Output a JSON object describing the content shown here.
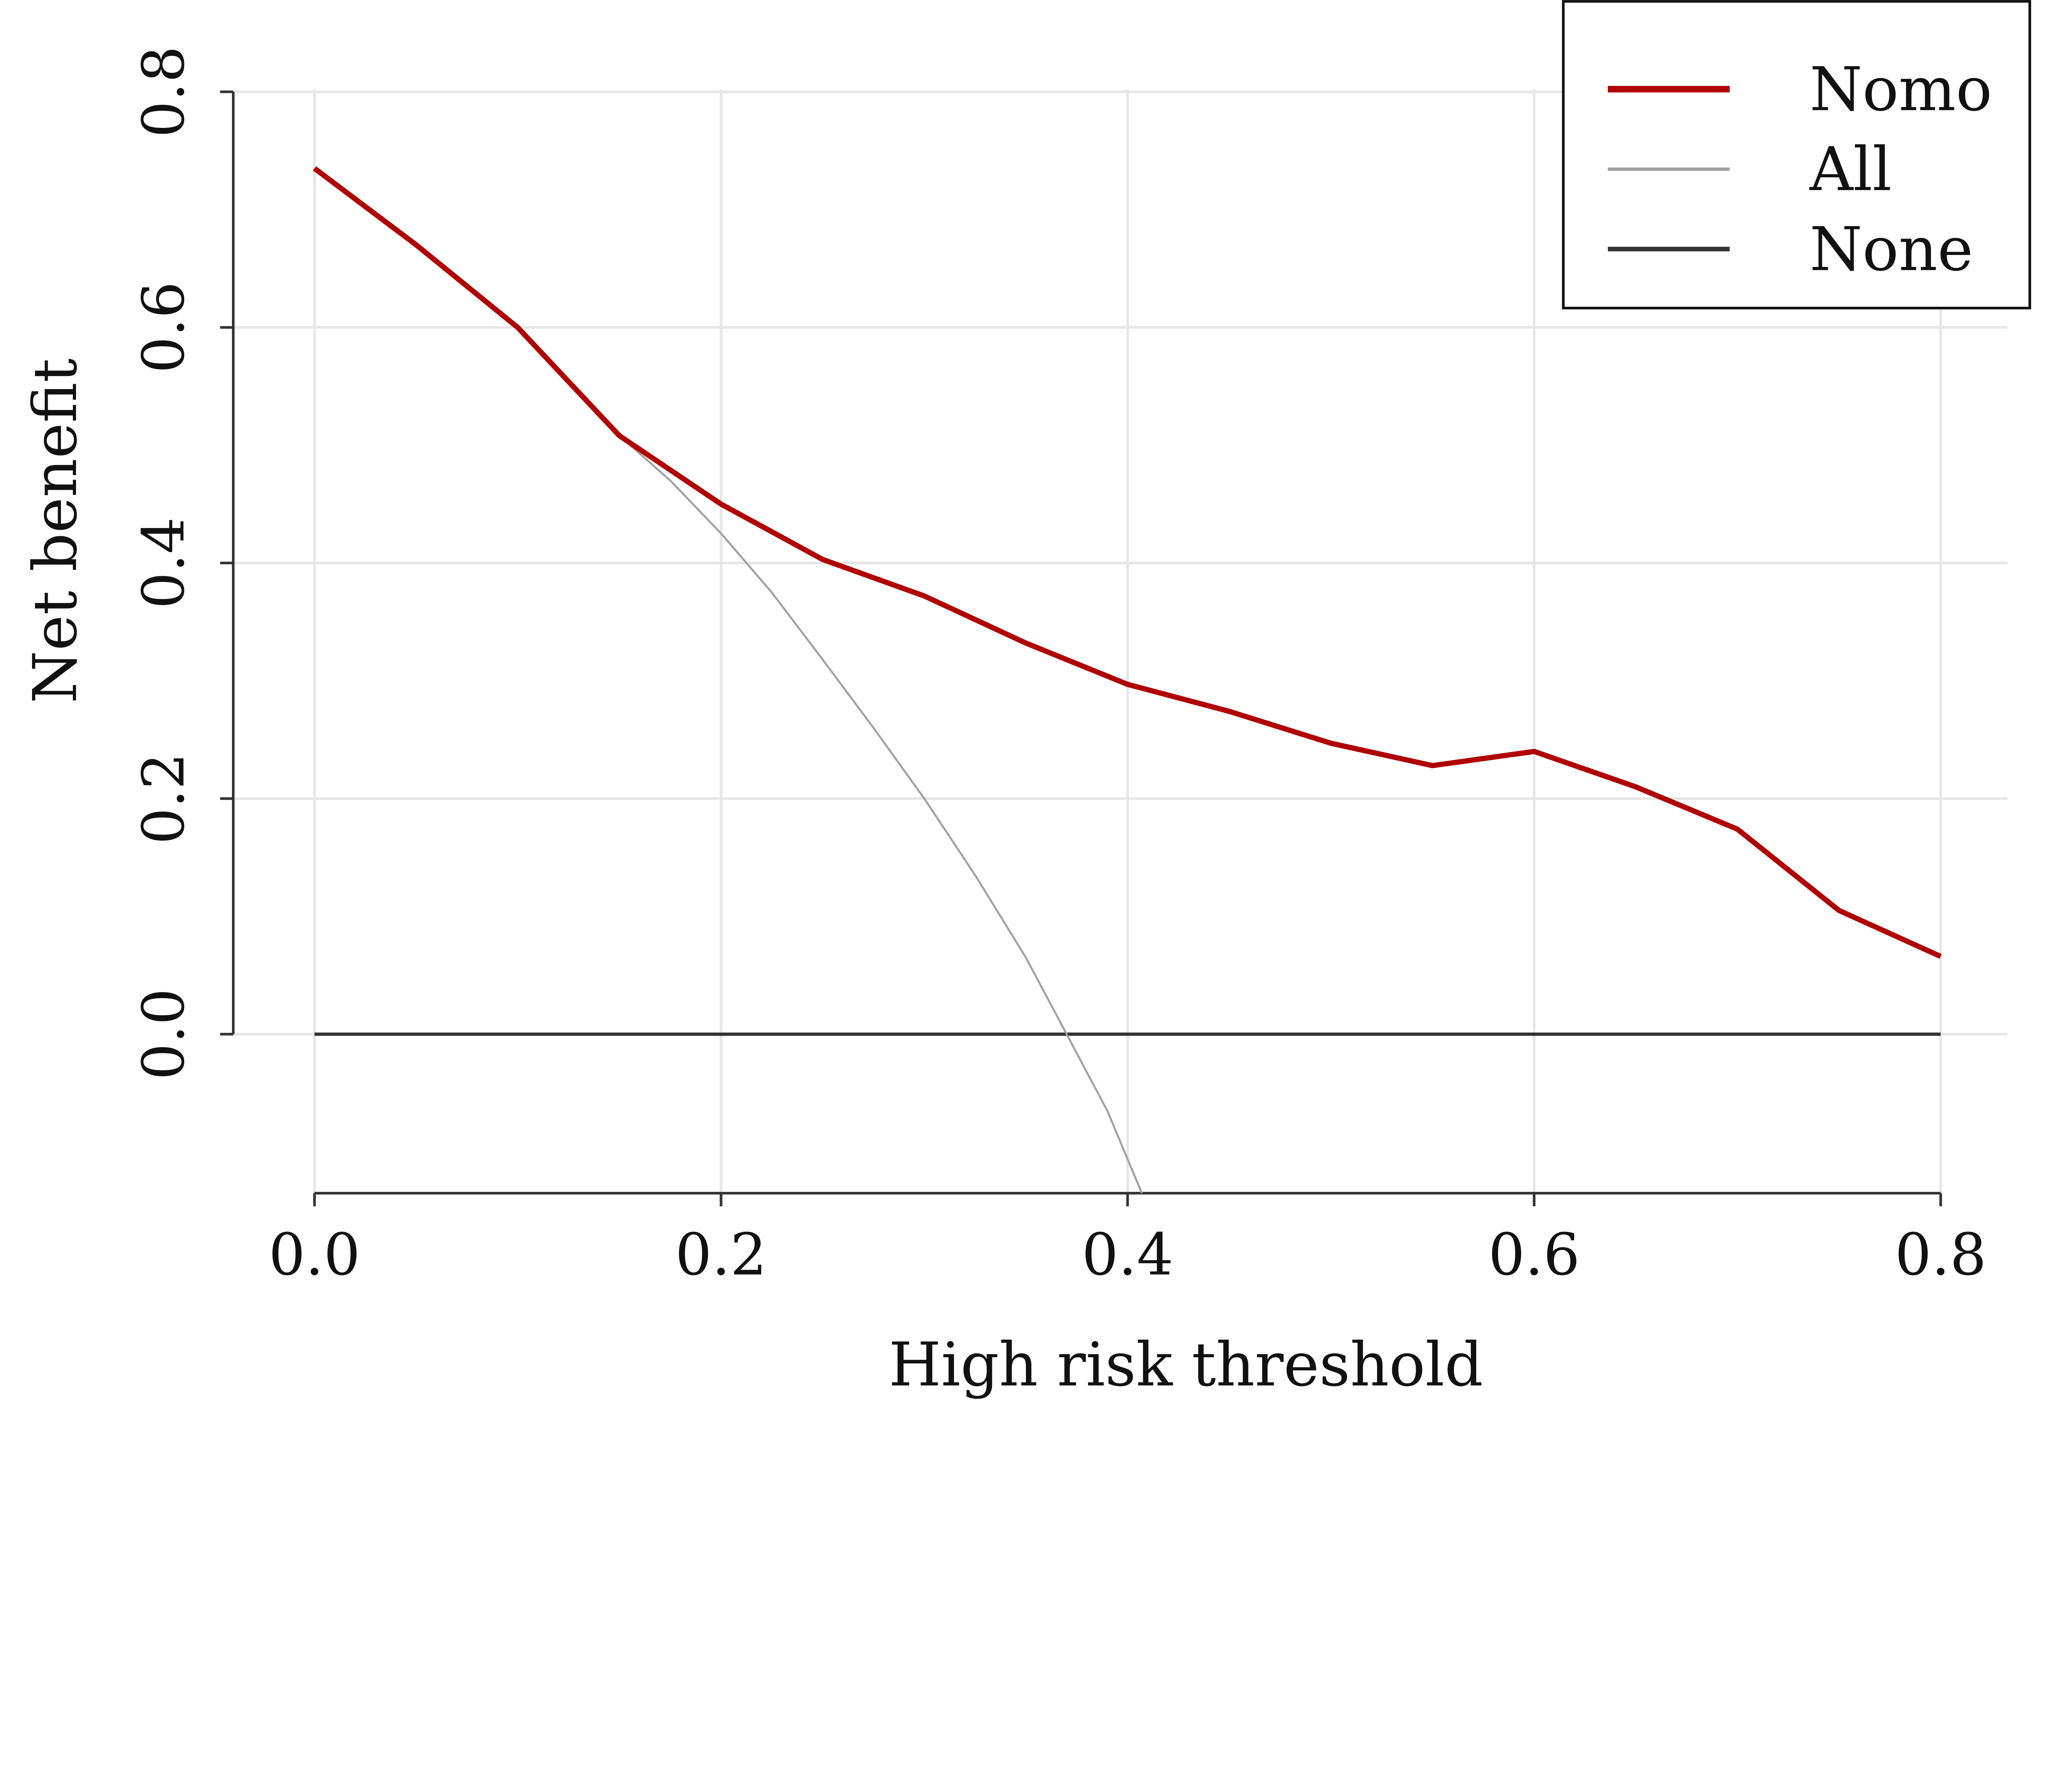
{
  "chart_data": {
    "type": "line",
    "title": "",
    "xlabel": "High risk threshold",
    "ylabel": "Net benefit",
    "xlim": [
      0,
      0.8
    ],
    "ylim": [
      -0.135,
      0.8
    ],
    "xticks": [
      "0.0",
      "0.2",
      "0.4",
      "0.6",
      "0.8"
    ],
    "yticks": [
      "0.0",
      "0.2",
      "0.4",
      "0.6",
      "0.8"
    ],
    "grid": true,
    "legend_position": "top-right",
    "series": [
      {
        "name": "Nomo",
        "color": "#b00000",
        "x": [
          0,
          0.05,
          0.1,
          0.15,
          0.2,
          0.25,
          0.3,
          0.35,
          0.4,
          0.45,
          0.5,
          0.55,
          0.6,
          0.65,
          0.7,
          0.75,
          0.8
        ],
        "y": [
          0.735,
          0.67,
          0.6,
          0.508,
          0.45,
          0.403,
          0.372,
          0.332,
          0.297,
          0.274,
          0.247,
          0.228,
          0.24,
          0.21,
          0.174,
          0.105,
          0.066
        ]
      },
      {
        "name": "All",
        "color": "#a0a0a0",
        "x": [
          0.15,
          0.175,
          0.2,
          0.225,
          0.25,
          0.275,
          0.3,
          0.325,
          0.35,
          0.37,
          0.39,
          0.407
        ],
        "y": [
          0.508,
          0.47,
          0.425,
          0.375,
          0.318,
          0.26,
          0.2,
          0.135,
          0.065,
          0.0,
          -0.065,
          -0.135
        ]
      },
      {
        "name": "None",
        "color": "#333333",
        "x": [
          0,
          0.8
        ],
        "y": [
          0,
          0
        ]
      }
    ]
  }
}
